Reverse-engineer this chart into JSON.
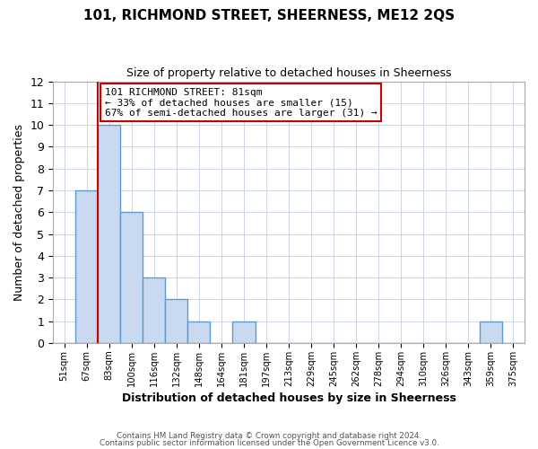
{
  "title": "101, RICHMOND STREET, SHEERNESS, ME12 2QS",
  "subtitle": "Size of property relative to detached houses in Sheerness",
  "xlabel": "Distribution of detached houses by size in Sheerness",
  "ylabel": "Number of detached properties",
  "bin_labels": [
    "51sqm",
    "67sqm",
    "83sqm",
    "100sqm",
    "116sqm",
    "132sqm",
    "148sqm",
    "164sqm",
    "181sqm",
    "197sqm",
    "213sqm",
    "229sqm",
    "245sqm",
    "262sqm",
    "278sqm",
    "294sqm",
    "310sqm",
    "326sqm",
    "343sqm",
    "359sqm",
    "375sqm"
  ],
  "bar_values": [
    0,
    7,
    10,
    6,
    3,
    2,
    1,
    0,
    1,
    0,
    0,
    0,
    0,
    0,
    0,
    0,
    0,
    0,
    0,
    1,
    0
  ],
  "bar_color": "#c8d9f0",
  "bar_edge_color": "#5b9bd5",
  "bar_edge_width": 1.0,
  "reference_line_x": 2,
  "reference_line_color": "#cc0000",
  "ylim": [
    0,
    12
  ],
  "yticks": [
    0,
    1,
    2,
    3,
    4,
    5,
    6,
    7,
    8,
    9,
    10,
    11,
    12
  ],
  "annotation_title": "101 RICHMOND STREET: 81sqm",
  "annotation_line1": "← 33% of detached houses are smaller (15)",
  "annotation_line2": "67% of semi-detached houses are larger (31) →",
  "annotation_box_facecolor": "#ffffff",
  "annotation_box_edgecolor": "#cc0000",
  "footer_line1": "Contains HM Land Registry data © Crown copyright and database right 2024.",
  "footer_line2": "Contains public sector information licensed under the Open Government Licence v3.0.",
  "background_color": "#ffffff",
  "grid_color": "#ccd6e8",
  "spine_color": "#aaaaaa"
}
